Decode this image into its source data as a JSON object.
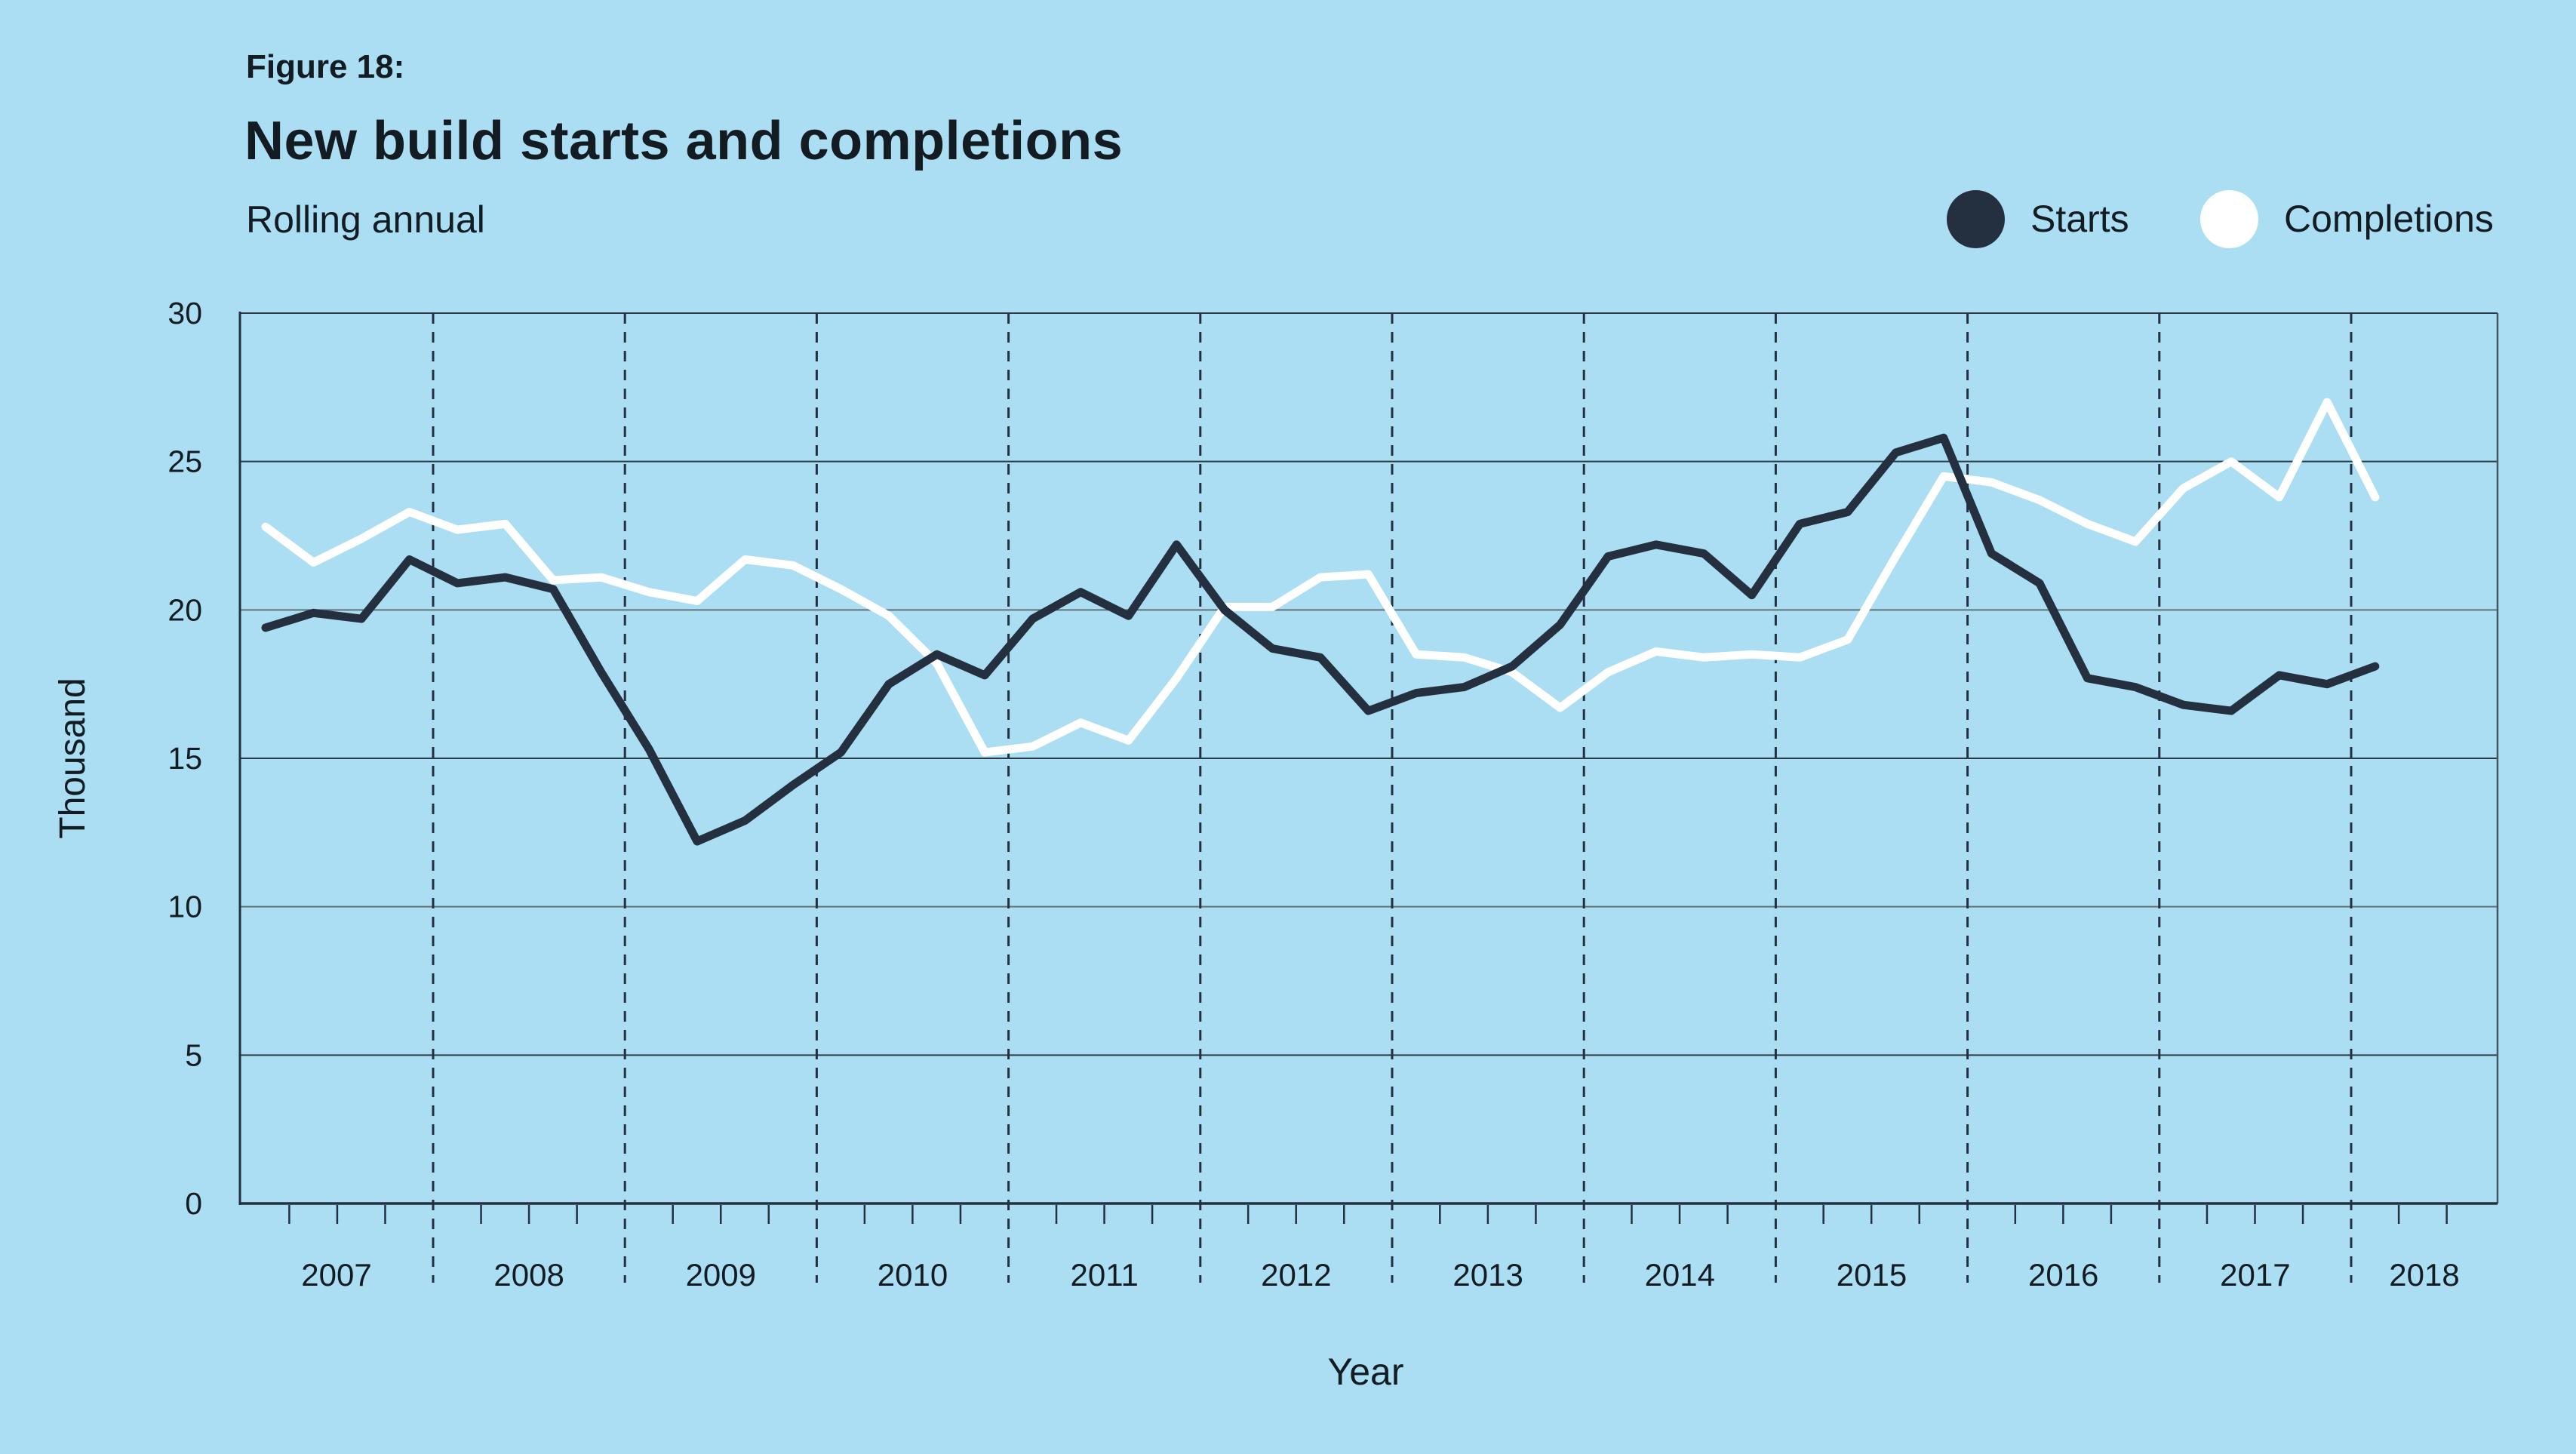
{
  "page": {
    "background": "#abdef2",
    "text_color": "#131c23"
  },
  "figure": {
    "label": "Figure 18:",
    "title": "New build starts and completions",
    "subtitle": "Rolling annual"
  },
  "legend": {
    "position": "top-right",
    "items": [
      {
        "label": "Starts",
        "color": "#242f40"
      },
      {
        "label": "Completions",
        "color": "#ffffff"
      }
    ]
  },
  "chart_data": {
    "type": "line",
    "title": "New build starts and completions",
    "subtitle": "Rolling annual",
    "xlabel": "Year",
    "ylabel": "Thousand",
    "ylim": [
      0,
      30
    ],
    "y_ticks": [
      0,
      5,
      10,
      15,
      20,
      25,
      30
    ],
    "years": [
      2007,
      2008,
      2009,
      2010,
      2011,
      2012,
      2013,
      2014,
      2015,
      2016,
      2017,
      2018
    ],
    "frequency": "quarterly",
    "first_period": "2007 Q1",
    "last_period": "2018 Q1",
    "grid": "horizontal gridlines every 5 thousand; dashed vertical lines at year boundaries; quarterly tick marks on x-axis",
    "legend_position": "top-right",
    "series": [
      {
        "name": "Starts",
        "color": "#242f40",
        "values": [
          19.4,
          19.9,
          19.7,
          21.7,
          20.9,
          21.1,
          20.7,
          17.9,
          15.3,
          12.2,
          12.9,
          14.1,
          15.2,
          17.5,
          18.5,
          17.8,
          19.7,
          20.6,
          19.8,
          22.2,
          20.0,
          18.7,
          18.4,
          16.6,
          17.2,
          17.4,
          18.1,
          19.5,
          21.8,
          22.2,
          21.9,
          20.5,
          22.9,
          23.3,
          25.3,
          25.8,
          21.9,
          20.9,
          17.7,
          17.4,
          16.8,
          16.6,
          17.8,
          17.5,
          18.1
        ]
      },
      {
        "name": "Completions",
        "color": "#ffffff",
        "values": [
          22.8,
          21.6,
          22.4,
          23.3,
          22.7,
          22.9,
          21.0,
          21.1,
          20.6,
          20.3,
          21.7,
          21.5,
          20.7,
          19.8,
          18.2,
          15.2,
          15.4,
          16.2,
          15.6,
          17.7,
          20.1,
          20.1,
          21.1,
          21.2,
          18.5,
          18.4,
          17.9,
          16.7,
          17.9,
          18.6,
          18.4,
          18.5,
          18.4,
          19.0,
          21.8,
          24.5,
          24.3,
          23.7,
          22.9,
          22.3,
          24.1,
          25.0,
          23.8,
          27.0,
          23.8
        ]
      }
    ],
    "style": {
      "background": "#abdef2",
      "grid_dark": "#2a3b45",
      "grid_gray": "#5f7278",
      "axis_color": "#242f40",
      "divider_color": "#242f40",
      "line_width": 11
    }
  }
}
